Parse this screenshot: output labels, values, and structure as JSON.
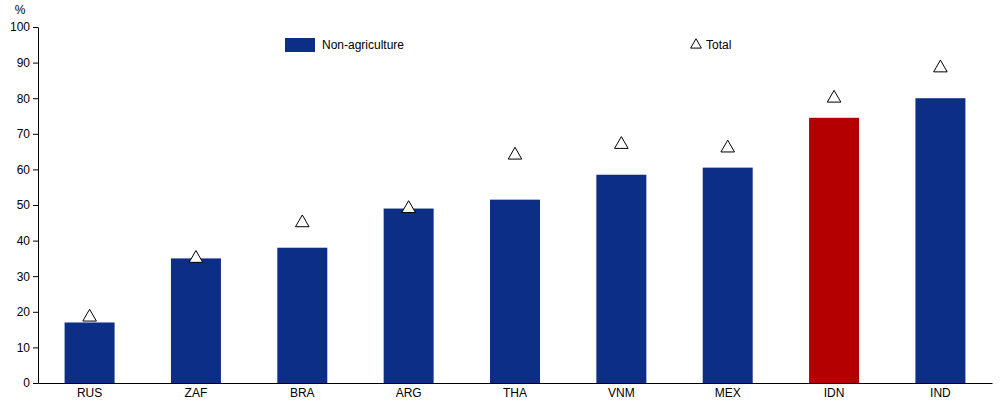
{
  "chart_data": {
    "type": "bar",
    "y_label": "%",
    "categories": [
      "RUS",
      "ZAF",
      "BRA",
      "ARG",
      "THA",
      "VNM",
      "MEX",
      "IDN",
      "IND"
    ],
    "series": [
      {
        "name": "Non-agriculture",
        "type": "bar",
        "colors": [
          "#0c2e86",
          "#0c2e86",
          "#0c2e86",
          "#0c2e86",
          "#0c2e86",
          "#0c2e86",
          "#0c2e86",
          "#b40000",
          "#0c2e86"
        ],
        "values": [
          17,
          35,
          38,
          49,
          51.5,
          58.5,
          60.5,
          74.5,
          80
        ]
      },
      {
        "name": "Total",
        "type": "scatter",
        "marker": "triangle",
        "color": "#ffffff",
        "values": [
          18.5,
          35,
          45,
          49,
          64,
          67,
          66,
          80,
          88.5
        ]
      }
    ],
    "ylim": [
      0,
      100
    ],
    "yticks": [
      0,
      10,
      20,
      30,
      40,
      50,
      60,
      70,
      80,
      90,
      100
    ],
    "grid": false,
    "legend": "top"
  }
}
